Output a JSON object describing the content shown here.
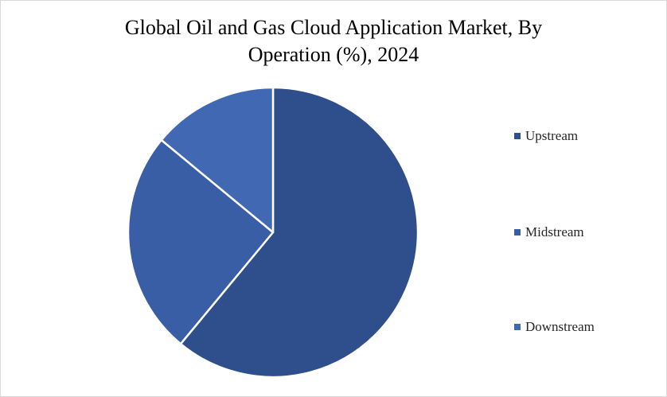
{
  "chart_data": {
    "type": "pie",
    "title_lines": [
      "Global Oil and Gas Cloud Application Market, By",
      "Operation (%), 2024"
    ],
    "categories": [
      "Upstream",
      "Midstream",
      "Downstream"
    ],
    "values": [
      61,
      25,
      14
    ],
    "colors": [
      "#2e4f8b",
      "#3a5ea6",
      "#4169b3"
    ],
    "legend_position": "right",
    "slice_border_color": "#ffffff"
  }
}
